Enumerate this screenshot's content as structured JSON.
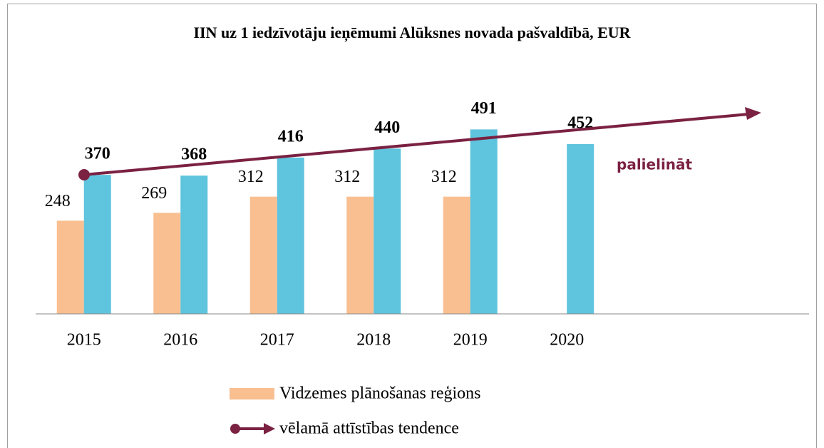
{
  "chart_data": {
    "type": "bar",
    "title": "IIN uz 1 iedzīvotāju ieņēmumi Alūksnes novada pašvaldībā, EUR",
    "categories": [
      "2015",
      "2016",
      "2017",
      "2018",
      "2019",
      "2020",
      null,
      null
    ],
    "series": [
      {
        "name": "Vidzemes plānošanas reģions",
        "color": "#f9bf90",
        "values": [
          248,
          269,
          312,
          312,
          312,
          null,
          null,
          null
        ]
      },
      {
        "color": "#5fc4dd",
        "values": [
          370,
          368,
          416,
          440,
          491,
          452,
          null,
          null
        ]
      }
    ],
    "ylim": [
      0,
      600
    ],
    "trend": {
      "name": "vēlamā attīstības tendence",
      "color": "#7b2142",
      "annotation": "palielināt"
    }
  }
}
